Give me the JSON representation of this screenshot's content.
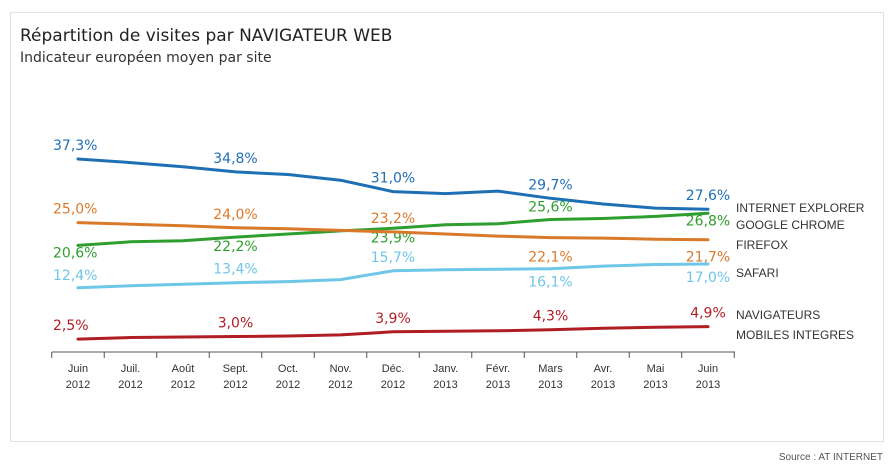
{
  "title": "Répartition de visites par NAVIGATEUR WEB",
  "subtitle": "Indicateur européen moyen par site",
  "source": "Source : AT INTERNET",
  "chart_data": {
    "type": "line",
    "categories": [
      [
        "Juin",
        "2012"
      ],
      [
        "Juil.",
        "2012"
      ],
      [
        "Août",
        "2012"
      ],
      [
        "Sept.",
        "2012"
      ],
      [
        "Oct.",
        "2012"
      ],
      [
        "Nov.",
        "2012"
      ],
      [
        "Déc.",
        "2012"
      ],
      [
        "Janv.",
        "2013"
      ],
      [
        "Févr.",
        "2013"
      ],
      [
        "Mars",
        "2013"
      ],
      [
        "Avr.",
        "2013"
      ],
      [
        "Mai",
        "2013"
      ],
      [
        "Juin",
        "2013"
      ]
    ],
    "ylim": [
      0,
      40
    ],
    "grid": false,
    "legend": "right",
    "series": [
      {
        "name": [
          "INTERNET EXPLORER"
        ],
        "color": "#1f6fb5",
        "values": [
          37.3,
          36.6,
          35.8,
          34.8,
          34.3,
          33.2,
          31.0,
          30.6,
          31.1,
          29.7,
          28.6,
          27.8,
          27.6
        ],
        "labels": {
          "0": "37,3%",
          "3": "34,8%",
          "6": "31,0%",
          "9": "29,7%",
          "12": "27,6%"
        }
      },
      {
        "name": [
          "GOOGLE CHROME"
        ],
        "color": "#2e9e2e",
        "values": [
          20.6,
          21.3,
          21.5,
          22.2,
          22.8,
          23.4,
          23.9,
          24.6,
          24.8,
          25.6,
          25.8,
          26.2,
          26.8
        ],
        "labels": {
          "0": "20,6%",
          "3": "22,2%",
          "6": "23,9%",
          "9": "25,6%",
          "12": "26,8%"
        }
      },
      {
        "name": [
          "FIREFOX"
        ],
        "color": "#d97a2b",
        "values": [
          25.0,
          24.7,
          24.4,
          24.0,
          23.8,
          23.5,
          23.2,
          22.8,
          22.4,
          22.1,
          22.0,
          21.8,
          21.7
        ],
        "labels": {
          "0": "25,0%",
          "3": "24,0%",
          "6": "23,2%",
          "9": "22,1%",
          "12": "21,7%"
        }
      },
      {
        "name": [
          "SAFARI"
        ],
        "color": "#6ec6e8",
        "values": [
          12.4,
          12.8,
          13.1,
          13.4,
          13.6,
          14.0,
          15.7,
          15.9,
          16.0,
          16.1,
          16.6,
          16.9,
          17.0
        ],
        "labels": {
          "0": "12,4%",
          "3": "13,4%",
          "6": "15,7%",
          "9": "16,1%",
          "12": "17,0%"
        }
      },
      {
        "name": [
          "NAVIGATEURS",
          "MOBILES INTEGRES"
        ],
        "color": "#b01e23",
        "values": [
          2.5,
          2.8,
          2.9,
          3.0,
          3.1,
          3.3,
          3.9,
          4.0,
          4.1,
          4.3,
          4.6,
          4.8,
          4.9
        ],
        "labels": {
          "0": "2,5%",
          "3": "3,0%",
          "6": "3,9%",
          "9": "4,3%",
          "12": "4,9%"
        }
      }
    ]
  }
}
